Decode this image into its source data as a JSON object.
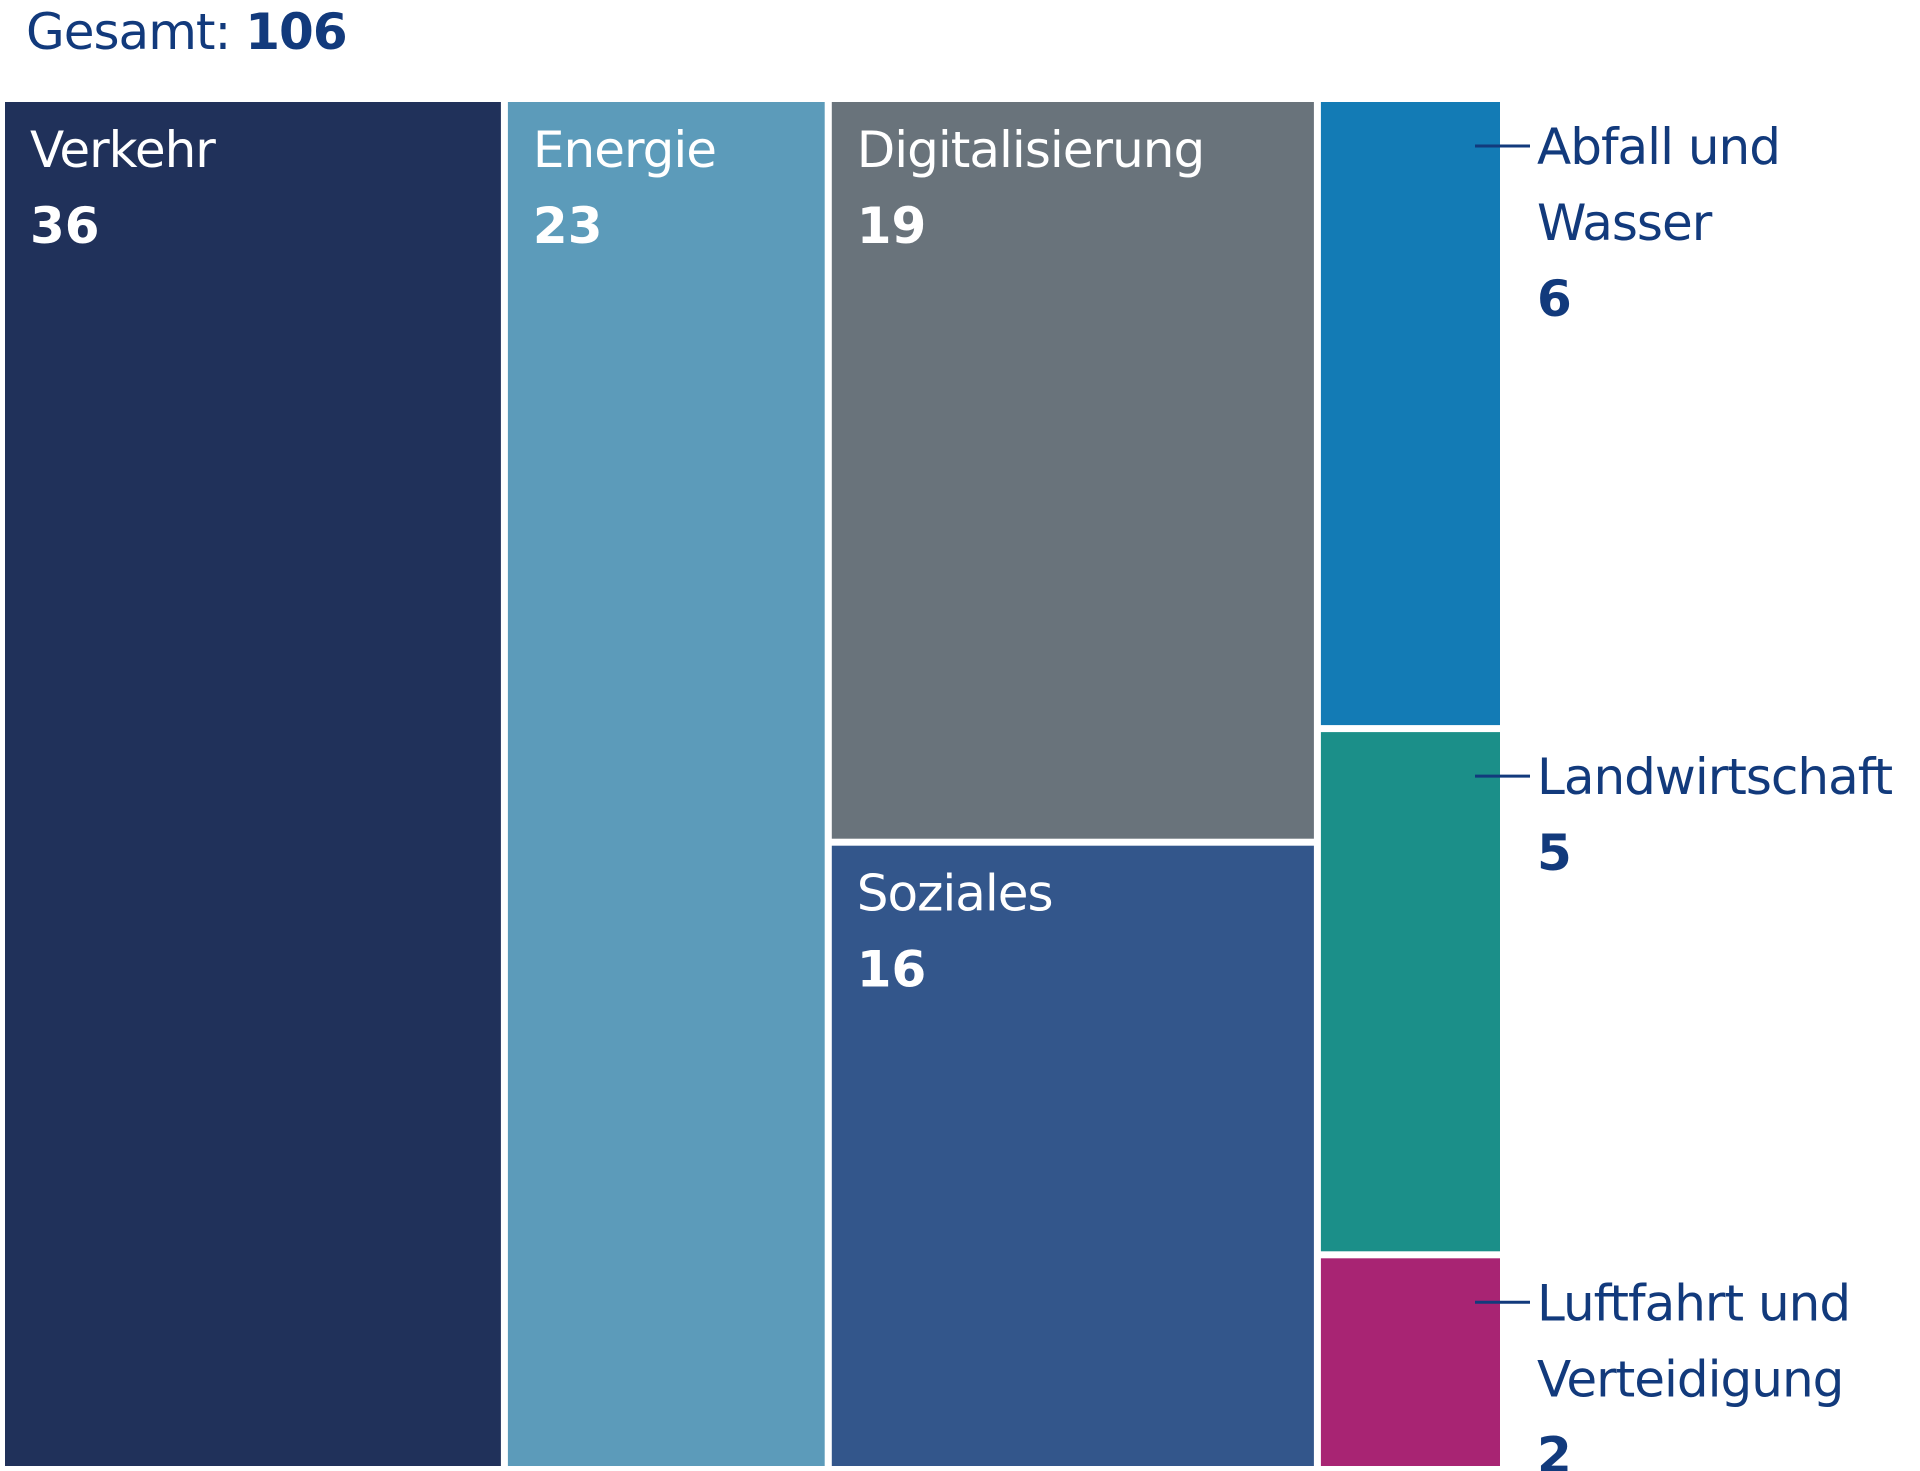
{
  "chart_data": {
    "type": "treemap",
    "title_prefix": "Gesamt:",
    "total": "106",
    "items": [
      {
        "id": "verkehr",
        "label": [
          "Verkehr"
        ],
        "value": 36,
        "color": "#20315a",
        "label_position": "inside"
      },
      {
        "id": "energie",
        "label": [
          "Energie"
        ],
        "value": 23,
        "color": "#5c9bba",
        "label_position": "inside"
      },
      {
        "id": "digitalisierung",
        "label": [
          "Digitalisierung"
        ],
        "value": 19,
        "color": "#69737b",
        "label_position": "inside"
      },
      {
        "id": "soziales",
        "label": [
          "Soziales"
        ],
        "value": 16,
        "color": "#33568b",
        "label_position": "inside"
      },
      {
        "id": "abfall-und-wasser",
        "label": [
          "Abfall und",
          "Wasser"
        ],
        "value": 6,
        "color": "#137bb5",
        "label_position": "outside"
      },
      {
        "id": "landwirtschaft",
        "label": [
          "Landwirtschaft"
        ],
        "value": 5,
        "color": "#1b8f89",
        "label_position": "outside"
      },
      {
        "id": "luftfahrt-und-verteidigung",
        "label": [
          "Luftfahrt und",
          "Verteidigung"
        ],
        "value": 2,
        "color": "#a82473",
        "label_position": "outside"
      }
    ]
  }
}
